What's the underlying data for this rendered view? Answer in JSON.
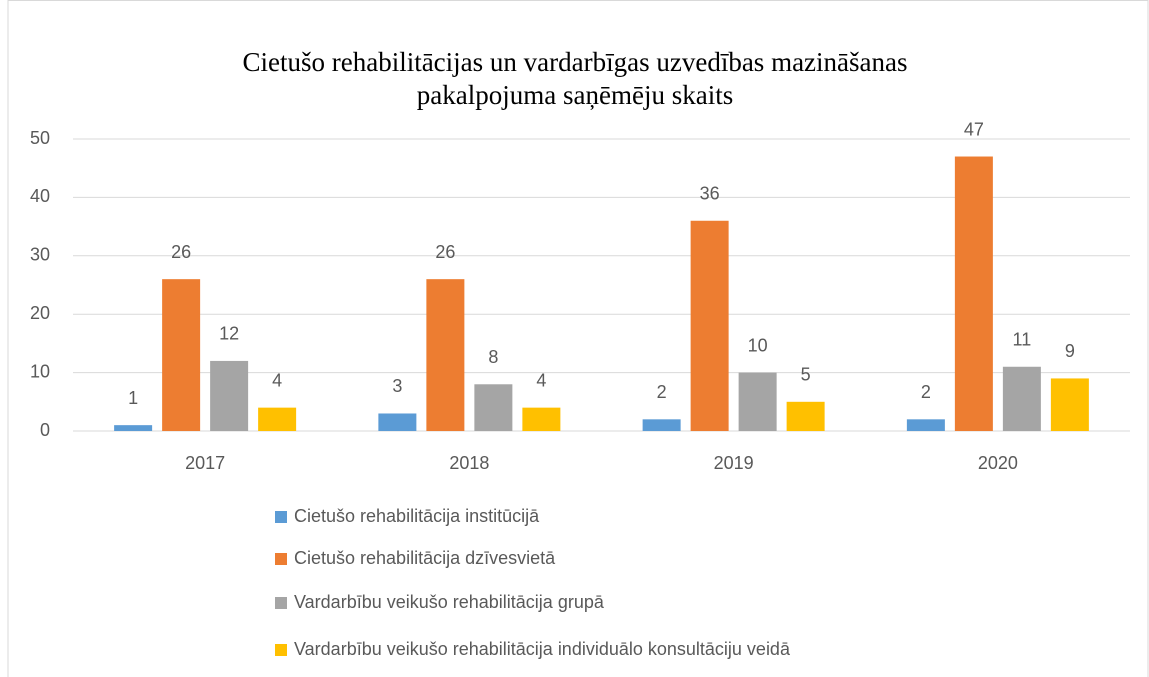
{
  "chart_data": {
    "type": "bar",
    "title": [
      "Cietušo rehabilitācijas un vardarbīgas uzvedības mazināšanas",
      "pakalpojuma saņēmēju skaits"
    ],
    "categories": [
      "2017",
      "2018",
      "2019",
      "2020"
    ],
    "series": [
      {
        "name": "Cietušo rehabilitācija institūcijā",
        "color": "#5b9bd5",
        "values": [
          1,
          3,
          2,
          2
        ]
      },
      {
        "name": "Cietušo rehabilitācija dzīvesvietā",
        "color": "#ed7d31",
        "values": [
          26,
          26,
          36,
          47
        ]
      },
      {
        "name": "Vardarbību veikušo rehabilitācija grupā",
        "color": "#a5a5a5",
        "values": [
          12,
          8,
          10,
          11
        ]
      },
      {
        "name": "Vardarbību veikušo rehabilitācija individuālo konsultāciju veidā",
        "color": "#ffc000",
        "values": [
          4,
          4,
          5,
          9
        ]
      }
    ],
    "ylim": [
      0,
      50
    ],
    "yticks": [
      0,
      10,
      20,
      30,
      40,
      50
    ],
    "grid": true,
    "legend": "bottom"
  }
}
